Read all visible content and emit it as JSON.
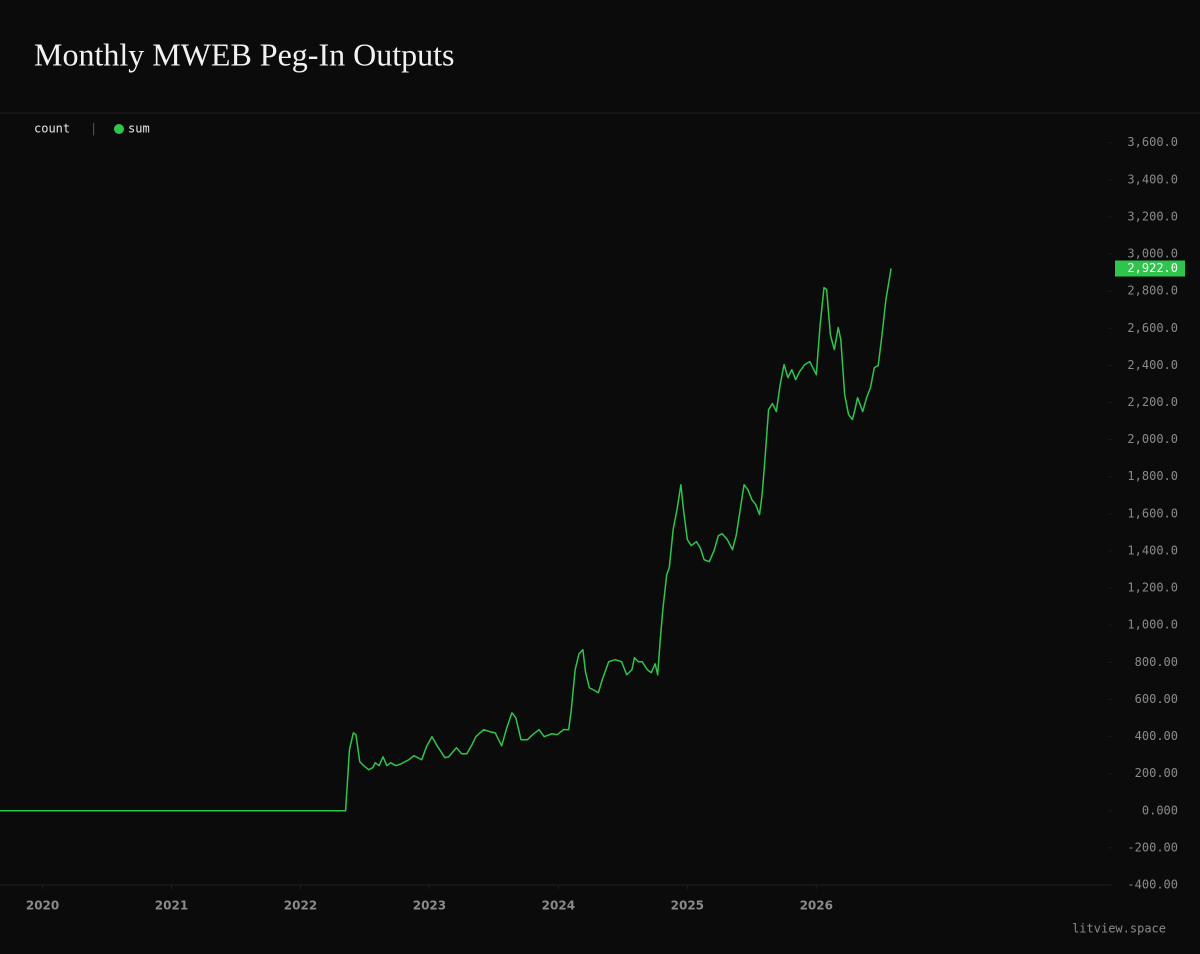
{
  "chart_data": {
    "type": "line",
    "title": "Monthly MWEB Peg-In Outputs",
    "legend_prefix": "count",
    "x": [
      2019.67,
      2022.35,
      2022.38,
      2022.41,
      2022.43,
      2022.46,
      2022.49,
      2022.53,
      2022.56,
      2022.58,
      2022.61,
      2022.64,
      2022.67,
      2022.7,
      2022.74,
      2022.78,
      2022.84,
      2022.88,
      2022.94,
      2022.98,
      2023.02,
      2023.06,
      2023.12,
      2023.15,
      2023.21,
      2023.25,
      2023.29,
      2023.33,
      2023.36,
      2023.42,
      2023.47,
      2023.51,
      2023.56,
      2023.6,
      2023.64,
      2023.67,
      2023.71,
      2023.76,
      2023.8,
      2023.85,
      2023.89,
      2023.95,
      2023.99,
      2024.04,
      2024.08,
      2024.1,
      2024.13,
      2024.16,
      2024.19,
      2024.21,
      2024.24,
      2024.27,
      2024.31,
      2024.34,
      2024.39,
      2024.44,
      2024.49,
      2024.53,
      2024.57,
      2024.59,
      2024.62,
      2024.65,
      2024.69,
      2024.72,
      2024.75,
      2024.77,
      2024.79,
      2024.81,
      2024.84,
      2024.86,
      2024.89,
      2024.92,
      2024.95,
      2024.97,
      2025.0,
      2025.03,
      2025.07,
      2025.1,
      2025.13,
      2025.17,
      2025.21,
      2025.24,
      2025.27,
      2025.31,
      2025.35,
      2025.38,
      2025.41,
      2025.44,
      2025.47,
      2025.5,
      2025.53,
      2025.56,
      2025.58,
      2025.6,
      2025.63,
      2025.66,
      2025.69,
      2025.72,
      2025.75,
      2025.78,
      2025.81,
      2025.84,
      2025.87,
      2025.91,
      2025.95,
      2026.0,
      2026.03,
      2026.06,
      2026.08,
      2026.11,
      2026.14,
      2026.17,
      2026.19,
      2026.22,
      2026.25,
      2026.28,
      2026.3,
      2026.32,
      2026.36,
      2026.39,
      2026.42,
      2026.45,
      2026.48,
      2026.51,
      2026.54,
      2026.58
    ],
    "series": [
      {
        "name": "sum",
        "color": "#2fc44b",
        "values": [
          0,
          0,
          329,
          420,
          410,
          264,
          243,
          221,
          232,
          259,
          243,
          291,
          243,
          259,
          243,
          253,
          275,
          297,
          275,
          350,
          399,
          350,
          286,
          291,
          340,
          307,
          307,
          356,
          399,
          437,
          426,
          420,
          350,
          447,
          528,
          501,
          383,
          383,
          410,
          437,
          399,
          415,
          410,
          437,
          437,
          544,
          760,
          846,
          868,
          749,
          663,
          652,
          636,
          706,
          803,
          814,
          803,
          733,
          760,
          825,
          803,
          803,
          760,
          744,
          792,
          733,
          922,
          1084,
          1272,
          1310,
          1515,
          1623,
          1757,
          1623,
          1461,
          1429,
          1450,
          1418,
          1353,
          1342,
          1407,
          1482,
          1493,
          1461,
          1407,
          1488,
          1623,
          1757,
          1730,
          1677,
          1650,
          1596,
          1704,
          1876,
          2162,
          2194,
          2151,
          2297,
          2404,
          2334,
          2377,
          2323,
          2366,
          2404,
          2420,
          2350,
          2620,
          2819,
          2809,
          2561,
          2485,
          2604,
          2539,
          2243,
          2135,
          2108,
          2162,
          2226,
          2151,
          2226,
          2280,
          2388,
          2399,
          2566,
          2755,
          2922
        ]
      }
    ],
    "annotation": {
      "value": 2922,
      "label": "2,922.0"
    },
    "xlim": [
      2019.67,
      2028.2
    ],
    "xticks": [
      2020,
      2021,
      2022,
      2023,
      2024,
      2025,
      2026
    ],
    "ylim": [
      -400,
      3760
    ],
    "yticks": [
      {
        "value": 3600,
        "label": "3,600.0"
      },
      {
        "value": 3400,
        "label": "3,400.0"
      },
      {
        "value": 3200,
        "label": "3,200.0"
      },
      {
        "value": 3000,
        "label": "3,000.0"
      },
      {
        "value": 2800,
        "label": "2,800.0"
      },
      {
        "value": 2600,
        "label": "2,600.0"
      },
      {
        "value": 2400,
        "label": "2,400.0"
      },
      {
        "value": 2200,
        "label": "2,200.0"
      },
      {
        "value": 2000,
        "label": "2,000.0"
      },
      {
        "value": 1800,
        "label": "1,800.0"
      },
      {
        "value": 1600,
        "label": "1,600.0"
      },
      {
        "value": 1400,
        "label": "1,400.0"
      },
      {
        "value": 1200,
        "label": "1,200.0"
      },
      {
        "value": 1000,
        "label": "1,000.0"
      },
      {
        "value": 800,
        "label": "800.00"
      },
      {
        "value": 600,
        "label": "600.00"
      },
      {
        "value": 400,
        "label": "400.00"
      },
      {
        "value": 200,
        "label": "200.00"
      },
      {
        "value": 0,
        "label": "0.000"
      },
      {
        "value": -200,
        "label": "-200.00"
      },
      {
        "value": -400,
        "label": "-400.00"
      }
    ],
    "watermark": "litview.space"
  }
}
